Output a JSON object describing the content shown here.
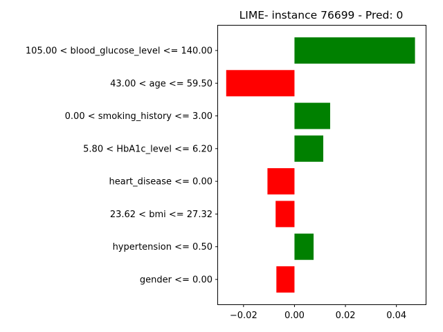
{
  "chart_data": {
    "type": "bar",
    "orientation": "horizontal",
    "title": "LIME- instance 76699 - Pred: 0",
    "xlabel": "",
    "ylabel": "",
    "xlim": [
      -0.03,
      0.0515
    ],
    "xticks": [
      -0.02,
      0.0,
      0.02,
      0.04
    ],
    "xtick_labels": [
      "−0.02",
      "0.00",
      "0.02",
      "0.04"
    ],
    "grid": false,
    "categories": [
      "105.00 < blood_glucose_level <= 140.00",
      "43.00 < age <= 59.50",
      "0.00 < smoking_history <= 3.00",
      "5.80 < HbA1c_level <= 6.20",
      "heart_disease <= 0.00",
      "23.62 < bmi <= 27.32",
      "hypertension <= 0.50",
      "gender <= 0.00"
    ],
    "values": [
      0.0473,
      -0.0268,
      0.014,
      0.0113,
      -0.0106,
      -0.0074,
      0.0075,
      -0.0071
    ],
    "colors": {
      "positive": "#008000",
      "negative": "#ff0000"
    }
  }
}
